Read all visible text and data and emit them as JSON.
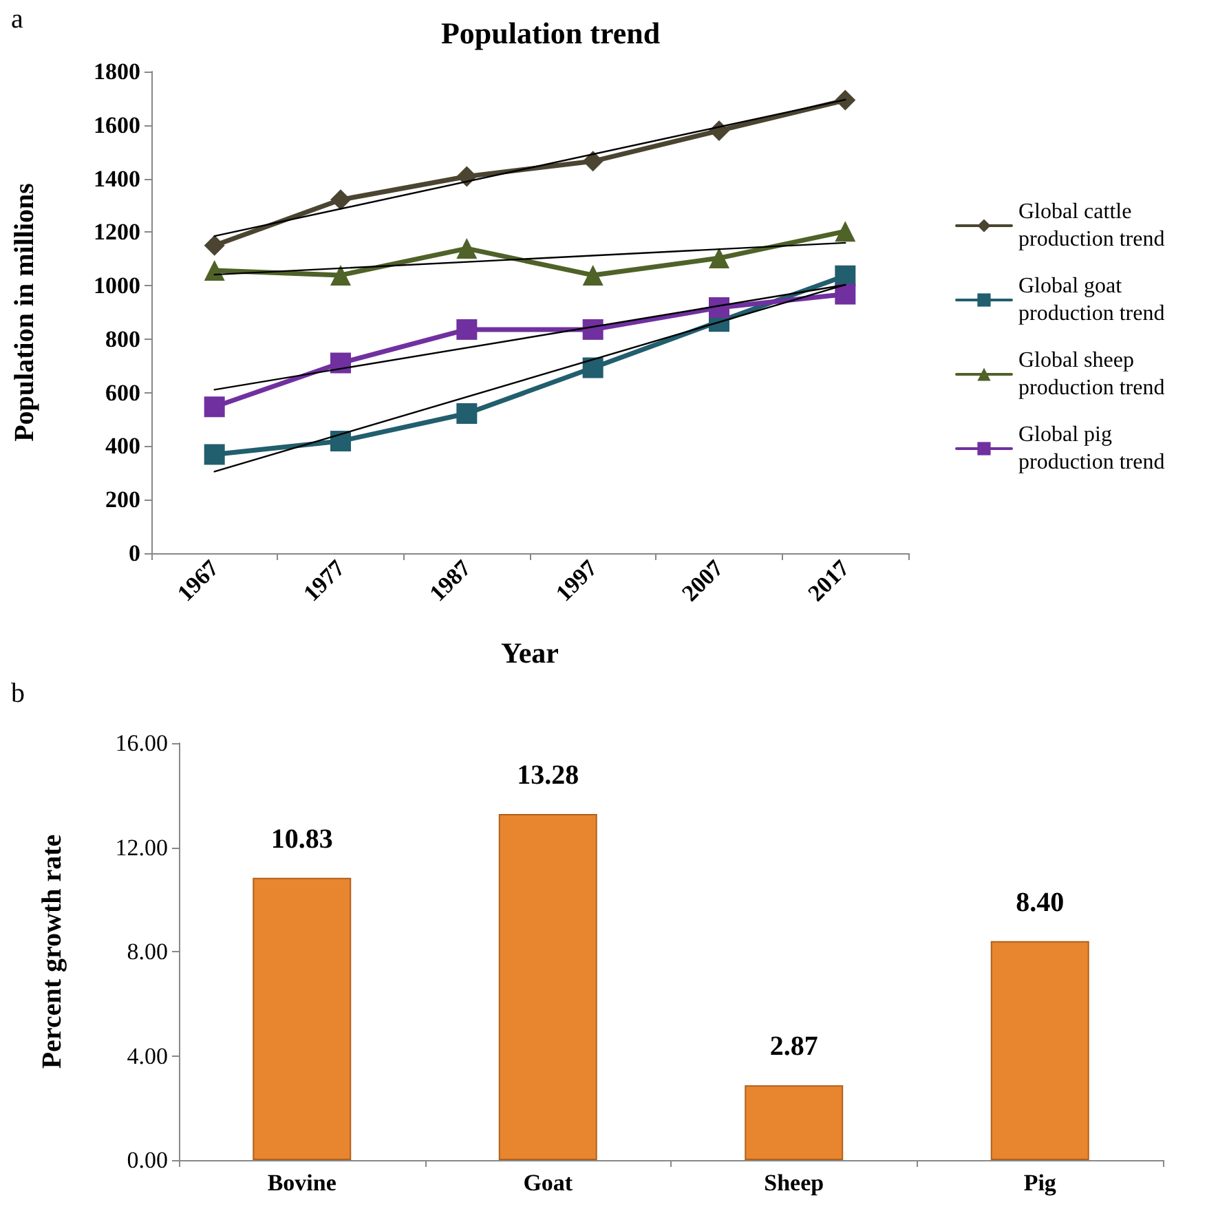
{
  "chart_data": [
    {
      "type": "line",
      "title": "Population trend",
      "xlabel": "Year",
      "ylabel": "Population in millions",
      "annotations": [
        "a"
      ],
      "categories": [
        "1967",
        "1977",
        "1987",
        "1997",
        "2007",
        "2017"
      ],
      "ylim": [
        0,
        1800
      ],
      "yticks": [
        0,
        200,
        400,
        600,
        800,
        1000,
        1200,
        1400,
        1600,
        1800
      ],
      "grid": false,
      "legend": "right",
      "line_style": "solid",
      "series": [
        {
          "name": "Global cattle production trend",
          "color": "#4a4431",
          "marker": "diamond",
          "values": [
            1150,
            1321,
            1408,
            1465,
            1579,
            1693
          ]
        },
        {
          "name": "Global goat production trend",
          "color": "#215e6e",
          "marker": "square",
          "values": [
            369,
            419,
            522,
            693,
            866,
            1037
          ]
        },
        {
          "name": "Global sheep production trend",
          "color": "#4f6228",
          "marker": "triangle",
          "values": [
            1057,
            1039,
            1139,
            1039,
            1103,
            1203
          ]
        },
        {
          "name": "Global pig production trend",
          "color": "#7030a0",
          "marker": "square",
          "values": [
            547,
            711,
            836,
            836,
            918,
            968
          ]
        },
        {
          "color": "#000000",
          "marker": "none",
          "values": [
            1185,
            null,
            null,
            null,
            null,
            1695
          ]
        },
        {
          "color": "#000000",
          "marker": "none",
          "values": [
            305,
            null,
            null,
            null,
            null,
            1003
          ]
        },
        {
          "color": "#000000",
          "marker": "none",
          "values": [
            1041,
            null,
            null,
            null,
            null,
            1160
          ]
        },
        {
          "color": "#000000",
          "marker": "none",
          "values": [
            611,
            null,
            null,
            null,
            null,
            1003
          ]
        }
      ]
    },
    {
      "type": "bar",
      "ylabel": "Percent growth rate",
      "annotations": [
        "b"
      ],
      "categories": [
        "Bovine",
        "Goat",
        "Sheep",
        "Pig"
      ],
      "values": [
        10.83,
        13.28,
        2.87,
        8.4
      ],
      "color": "#e8852f",
      "value_labels": [
        "10.83",
        "13.28",
        "2.87",
        "8.40"
      ],
      "ylim": [
        0,
        16
      ],
      "yticks": [
        {
          "value": 0,
          "label": "0.00"
        },
        {
          "value": 4,
          "label": "4.00"
        },
        {
          "value": 8,
          "label": "8.00"
        },
        {
          "value": 12,
          "label": "12.00"
        },
        {
          "value": 16,
          "label": "16.00"
        }
      ],
      "grid": false,
      "legend": false
    }
  ]
}
